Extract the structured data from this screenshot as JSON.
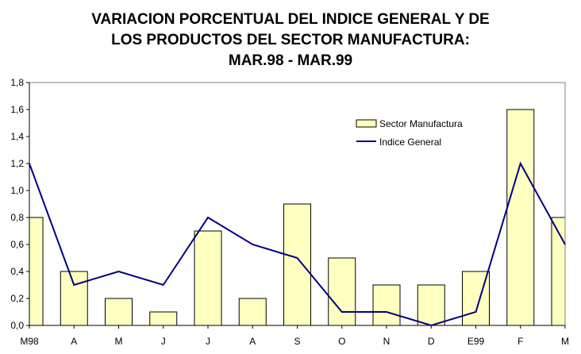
{
  "chart_data": {
    "type": "bar",
    "title_lines": [
      "VARIACION PORCENTUAL DEL INDICE GENERAL Y DE",
      "LOS PRODUCTOS DEL SECTOR MANUFACTURA:",
      "MAR.98 - MAR.99"
    ],
    "categories": [
      "M98",
      "A",
      "M",
      "J",
      "J",
      "A",
      "S",
      "O",
      "N",
      "D",
      "E99",
      "F",
      "M"
    ],
    "ylim": [
      0,
      1.8
    ],
    "yticks": [
      "0,0",
      "0,2",
      "0,4",
      "0,6",
      "0,8",
      "1,0",
      "1,2",
      "1,4",
      "1,6",
      "1,8"
    ],
    "ytick_values": [
      0,
      0.2,
      0.4,
      0.6,
      0.8,
      1.0,
      1.2,
      1.4,
      1.6,
      1.8
    ],
    "legend_position": "top-right",
    "series": [
      {
        "name": "Sector Manufactura",
        "kind": "bar",
        "color": "#FFFFC0",
        "values": [
          0.8,
          0.4,
          0.2,
          0.1,
          0.7,
          0.2,
          0.9,
          0.5,
          0.3,
          0.3,
          0.4,
          1.6,
          0.8
        ]
      },
      {
        "name": "Indice General",
        "kind": "line",
        "color": "#000080",
        "values": [
          1.2,
          0.3,
          0.4,
          0.3,
          0.8,
          0.6,
          0.5,
          0.1,
          0.1,
          0.0,
          0.1,
          1.2,
          0.6
        ]
      }
    ],
    "grid": false
  }
}
